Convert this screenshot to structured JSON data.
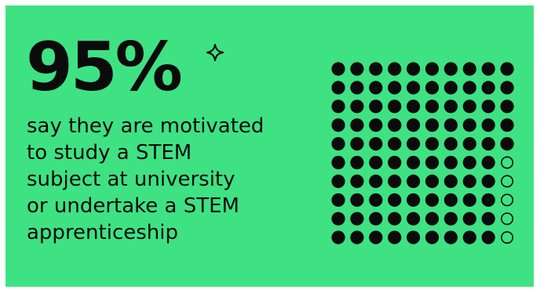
{
  "stat": {
    "value": "95%",
    "description_lines": [
      "say they are motivated",
      "to study a STEM",
      "subject at university",
      "or undertake a STEM",
      "apprenticeship"
    ]
  },
  "icons": {
    "accent": "sparkle-icon"
  },
  "colors": {
    "background": "#3ee283",
    "dot": "#0b0b0b",
    "page": "#ffffff"
  },
  "chart_data": {
    "type": "waffle",
    "total": 100,
    "filled": 95,
    "empty": 5,
    "rows": 10,
    "columns": 10
  }
}
